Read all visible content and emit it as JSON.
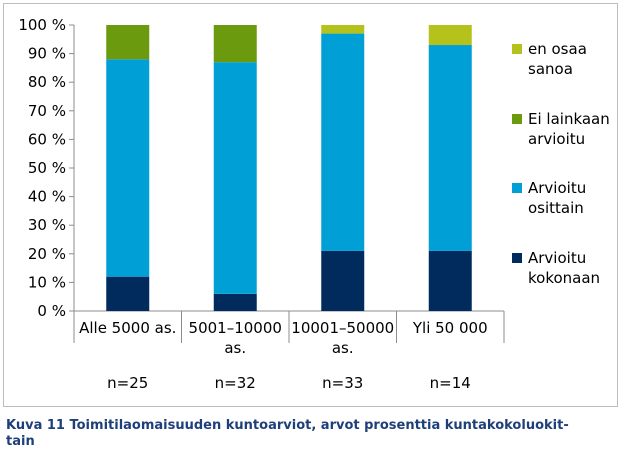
{
  "chart_data": {
    "type": "bar",
    "stacked": true,
    "categories": [
      "Alle 5000 as.",
      "5001–10000 as.",
      "10001–50000 as.",
      "Yli 50 000"
    ],
    "category_lines": [
      [
        "Alle 5000 as."
      ],
      [
        "5001–10000",
        "as."
      ],
      [
        "10001–50000",
        "as."
      ],
      [
        "Yli 50 000"
      ]
    ],
    "n_labels": [
      "n=25",
      "n=32",
      "n=33",
      "n=14"
    ],
    "series": [
      {
        "name": "Arvioitu kokonaan",
        "legend_lines": [
          "Arvioitu",
          "kokonaan"
        ],
        "color": "#002b5c",
        "values": [
          12,
          6,
          21,
          21
        ]
      },
      {
        "name": "Arvioitu osittain",
        "legend_lines": [
          "Arvioitu",
          "osittain"
        ],
        "color": "#00a0d6",
        "values": [
          76,
          81,
          76,
          72
        ]
      },
      {
        "name": "Ei lainkaan arvioitu",
        "legend_lines": [
          "Ei lainkaan",
          "arvioitu"
        ],
        "color": "#6b9a0f",
        "values": [
          12,
          13,
          0,
          0
        ]
      },
      {
        "name": "en osaa sanoa",
        "legend_lines": [
          "en osaa",
          "sanoa"
        ],
        "color": "#b5c21b",
        "values": [
          0,
          0,
          3,
          7
        ]
      }
    ],
    "ylim": [
      0,
      100
    ],
    "yticks": [
      0,
      10,
      20,
      30,
      40,
      50,
      60,
      70,
      80,
      90,
      100
    ],
    "ytick_labels": [
      "0 %",
      "10 %",
      "20 %",
      "30 %",
      "40 %",
      "50 %",
      "60 %",
      "70 %",
      "80 %",
      "90 %",
      "100 %"
    ],
    "grid": false,
    "legend_position": "right"
  },
  "caption_lines": [
    "Kuva 11 Toimitilaomaisuuden kuntoarviot, arvot prosenttia kuntakokoluokit-",
    "tain"
  ]
}
